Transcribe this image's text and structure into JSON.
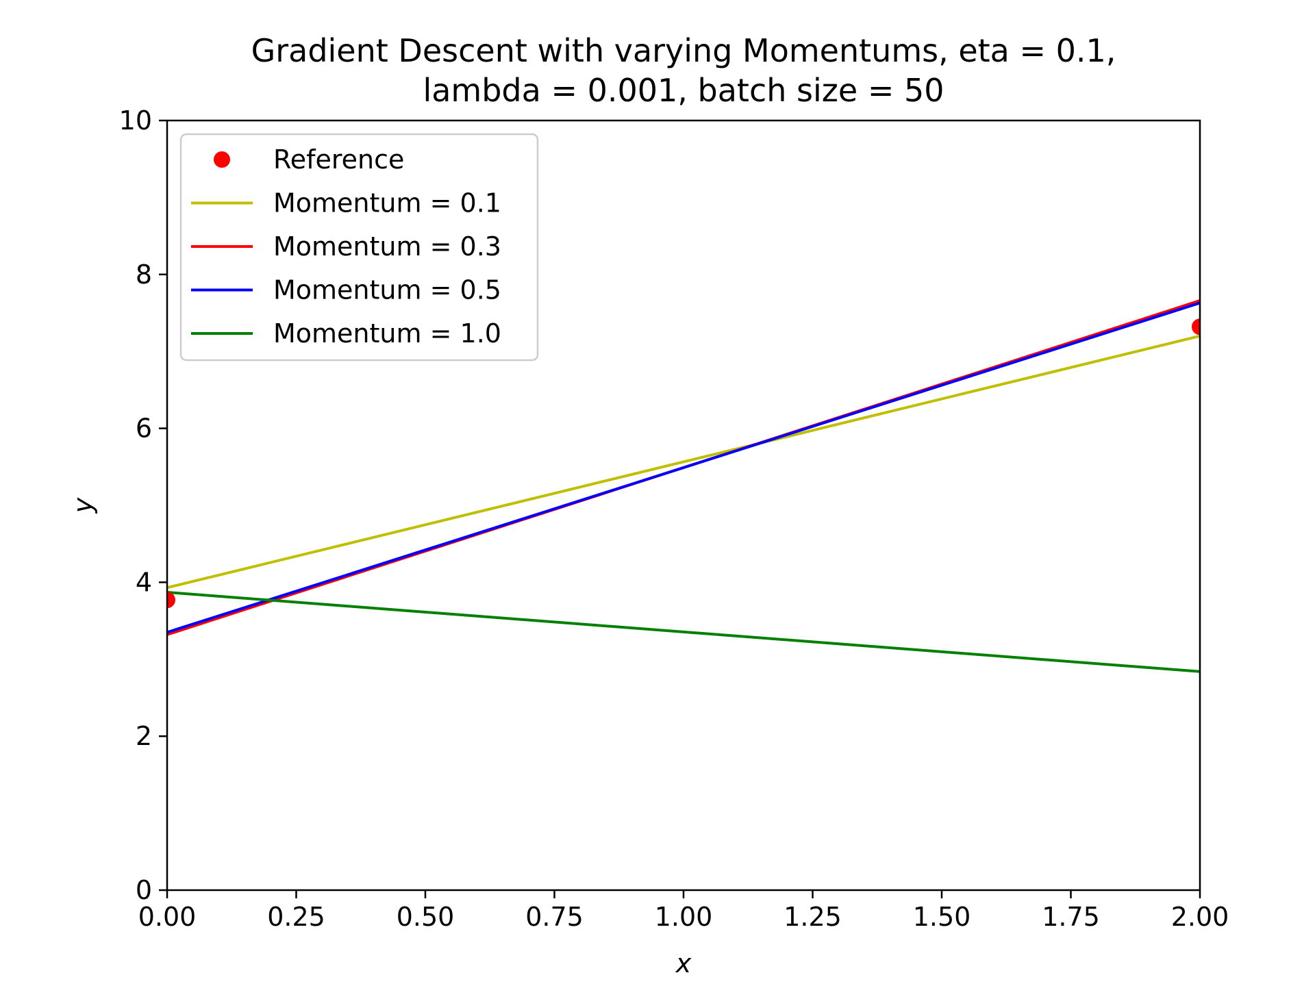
{
  "chart_data": {
    "type": "line",
    "title_lines": [
      "Gradient Descent with varying Momentums, eta = 0.1,",
      "lambda = 0.001, batch size = 50"
    ],
    "xlabel": "x",
    "ylabel": "y",
    "xlim": [
      0,
      2
    ],
    "ylim": [
      0,
      10
    ],
    "xticks": [
      0,
      0.25,
      0.5,
      0.75,
      1.0,
      1.25,
      1.5,
      1.75,
      2.0
    ],
    "xtick_labels": [
      "0.00",
      "0.25",
      "0.50",
      "0.75",
      "1.00",
      "1.25",
      "1.50",
      "1.75",
      "2.00"
    ],
    "yticks": [
      0,
      2,
      4,
      6,
      8,
      10
    ],
    "ytick_labels": [
      "0",
      "2",
      "4",
      "6",
      "8",
      "10"
    ],
    "grid": false,
    "legend_position": "top-left",
    "reference": {
      "name": "Reference",
      "color": "#ff0000",
      "points": [
        {
          "x": 0,
          "y": 3.77
        },
        {
          "x": 2,
          "y": 7.32
        }
      ]
    },
    "series": [
      {
        "name": "Momentum = 0.1",
        "color": "#bfbf00",
        "x": [
          0,
          2
        ],
        "y": [
          3.93,
          7.2
        ]
      },
      {
        "name": "Momentum = 0.3",
        "color": "#ff0000",
        "x": [
          0,
          2
        ],
        "y": [
          3.32,
          7.66
        ]
      },
      {
        "name": "Momentum = 0.5",
        "color": "#0000ff",
        "x": [
          0,
          2
        ],
        "y": [
          3.35,
          7.63
        ]
      },
      {
        "name": "Momentum = 1.0",
        "color": "#008000",
        "x": [
          0,
          2
        ],
        "y": [
          3.87,
          2.84
        ]
      }
    ]
  }
}
